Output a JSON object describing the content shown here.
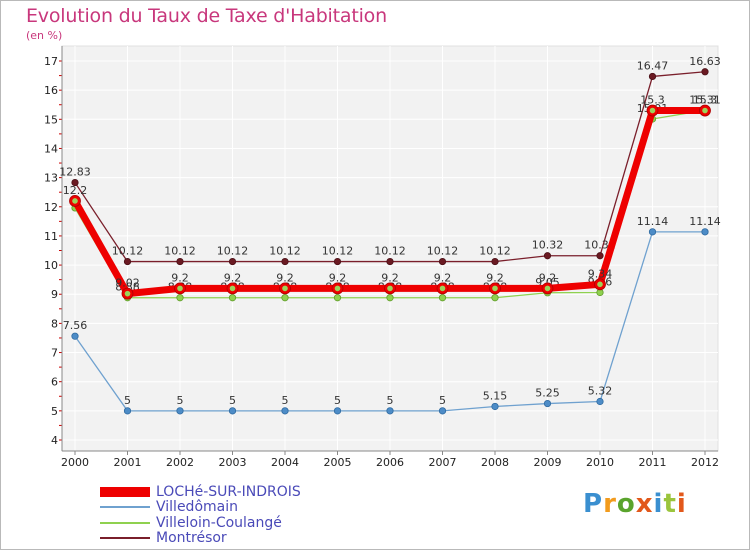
{
  "title": "Evolution du Taux de Taxe d'Habitation",
  "unit": "(en %)",
  "logo": {
    "text": "Proxiti",
    "colors": [
      "#3a8fd0",
      "#f29b1d",
      "#5aa42d",
      "#e2581b",
      "#3a8fd0",
      "#9bc53d",
      "#e2581b"
    ]
  },
  "chart_data": {
    "type": "line",
    "x": [
      "2000",
      "2001",
      "2002",
      "2003",
      "2004",
      "2005",
      "2006",
      "2007",
      "2008",
      "2009",
      "2010",
      "2011",
      "2012"
    ],
    "ylim": [
      4,
      17
    ],
    "yticks": [
      4,
      5,
      6,
      7,
      8,
      9,
      10,
      11,
      12,
      13,
      14,
      15,
      16,
      17
    ],
    "grid": true,
    "legend_position": "bottom-left",
    "series": [
      {
        "name": "Montrésor",
        "color": "#7a1f2b",
        "values": [
          12.83,
          10.12,
          10.12,
          10.12,
          10.12,
          10.12,
          10.12,
          10.12,
          10.12,
          10.32,
          10.32,
          16.47,
          16.63
        ],
        "labels": [
          "12.83",
          "10.12",
          "10.12",
          "10.12",
          "10.12",
          "10.12",
          "10.12",
          "10.12",
          "10.12",
          "10.32",
          "10.32",
          "16.47",
          "16.63"
        ]
      },
      {
        "name": "Villeloin-Coulangé",
        "color": "#8fd14f",
        "values": [
          11.96,
          8.88,
          8.88,
          8.88,
          8.88,
          8.88,
          8.88,
          8.88,
          8.88,
          9.05,
          9.06,
          15.01,
          15.31
        ],
        "labels": [
          "",
          "8.88",
          "8.88",
          "8.88",
          "8.88",
          "8.88",
          "8.88",
          "8.88",
          "8.88",
          "9.05",
          "9.06",
          "15.01",
          "15.31"
        ]
      },
      {
        "name": "Villedômain",
        "color": "#6fa1cf",
        "values": [
          7.56,
          5,
          5,
          5,
          5,
          5,
          5,
          5,
          5.15,
          5.25,
          5.32,
          11.14,
          11.14
        ],
        "labels": [
          "7.56",
          "5",
          "5",
          "5",
          "5",
          "5",
          "5",
          "5",
          "5.15",
          "5.25",
          "5.32",
          "11.14",
          "11.14"
        ]
      },
      {
        "name": "LOCHé-SUR-INDROIS",
        "color": "#ee0000",
        "values": [
          12.2,
          9.02,
          9.2,
          9.2,
          9.2,
          9.2,
          9.2,
          9.2,
          9.2,
          9.2,
          9.34,
          15.3,
          15.3
        ],
        "labels": [
          "12.2",
          "9.02",
          "9.2",
          "9.2",
          "9.2",
          "9.2",
          "9.2",
          "9.2",
          "9.2",
          "9.2",
          "9.34",
          "15.3",
          "15.3"
        ]
      }
    ],
    "legend": [
      "LOCHé-SUR-INDROIS",
      "Villedômain",
      "Villeloin-Coulangé",
      "Montrésor"
    ]
  }
}
